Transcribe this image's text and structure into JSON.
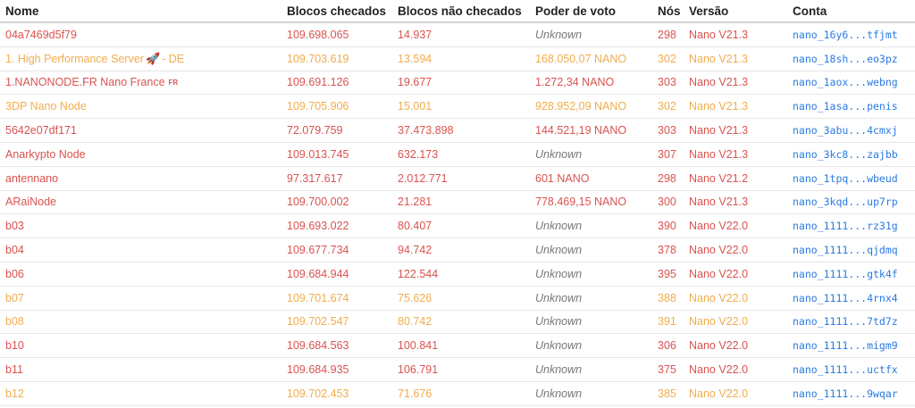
{
  "columns": {
    "name": "Nome",
    "checked": "Blocos checados",
    "unchecked": "Blocos não checados",
    "power": "Poder de voto",
    "peers": "Nós",
    "version": "Versão",
    "account": "Conta"
  },
  "colors": {
    "red": "#d9534f",
    "orange": "#f0ad4e",
    "link": "#2a7ae2",
    "unknown": "#777777"
  },
  "rows": [
    {
      "name": "04a7469d5f79",
      "flag": "",
      "rocket": "",
      "suffix": "",
      "checked": "109.698.065",
      "unchecked": "14.937",
      "power": "Unknown",
      "peers": "298",
      "version": "Nano V21.3",
      "account": "nano_16y6...tfjmt",
      "status": "red"
    },
    {
      "name": "1. High Performance Server",
      "flag": "",
      "rocket": "🚀",
      "suffix": "- DE",
      "checked": "109.703.619",
      "unchecked": "13.594",
      "power": "168.050,07 NANO",
      "peers": "302",
      "version": "Nano V21.3",
      "account": "nano_18sh...eo3pz",
      "status": "orange"
    },
    {
      "name": "1.NANONODE.FR Nano France",
      "flag": "FR",
      "rocket": "",
      "suffix": "",
      "checked": "109.691.126",
      "unchecked": "19.677",
      "power": "1.272,34 NANO",
      "peers": "303",
      "version": "Nano V21.3",
      "account": "nano_1aox...webng",
      "status": "red"
    },
    {
      "name": "3DP Nano Node",
      "flag": "",
      "rocket": "",
      "suffix": "",
      "checked": "109.705.906",
      "unchecked": "15.001",
      "power": "928.952,09 NANO",
      "peers": "302",
      "version": "Nano V21.3",
      "account": "nano_1asa...penis",
      "status": "orange"
    },
    {
      "name": "5642e07df171",
      "flag": "",
      "rocket": "",
      "suffix": "",
      "checked": "72.079.759",
      "unchecked": "37.473.898",
      "power": "144.521,19 NANO",
      "peers": "303",
      "version": "Nano V21.3",
      "account": "nano_3abu...4cmxj",
      "status": "red"
    },
    {
      "name": "Anarkypto Node",
      "flag": "",
      "rocket": "",
      "suffix": "",
      "checked": "109.013.745",
      "unchecked": "632.173",
      "power": "Unknown",
      "peers": "307",
      "version": "Nano V21.3",
      "account": "nano_3kc8...zajbb",
      "status": "red"
    },
    {
      "name": "antennano",
      "flag": "",
      "rocket": "",
      "suffix": "",
      "checked": "97.317.617",
      "unchecked": "2.012.771",
      "power": "601 NANO",
      "peers": "298",
      "version": "Nano V21.2",
      "account": "nano_1tpq...wbeud",
      "status": "red"
    },
    {
      "name": "ARaiNode",
      "flag": "",
      "rocket": "",
      "suffix": "",
      "checked": "109.700.002",
      "unchecked": "21.281",
      "power": "778.469,15 NANO",
      "peers": "300",
      "version": "Nano V21.3",
      "account": "nano_3kqd...up7rp",
      "status": "red"
    },
    {
      "name": "b03",
      "flag": "",
      "rocket": "",
      "suffix": "",
      "checked": "109.693.022",
      "unchecked": "80.407",
      "power": "Unknown",
      "peers": "390",
      "version": "Nano V22.0",
      "account": "nano_1111...rz31g",
      "status": "red"
    },
    {
      "name": "b04",
      "flag": "",
      "rocket": "",
      "suffix": "",
      "checked": "109.677.734",
      "unchecked": "94.742",
      "power": "Unknown",
      "peers": "378",
      "version": "Nano V22.0",
      "account": "nano_1111...qjdmq",
      "status": "red"
    },
    {
      "name": "b06",
      "flag": "",
      "rocket": "",
      "suffix": "",
      "checked": "109.684.944",
      "unchecked": "122.544",
      "power": "Unknown",
      "peers": "395",
      "version": "Nano V22.0",
      "account": "nano_1111...gtk4f",
      "status": "red"
    },
    {
      "name": "b07",
      "flag": "",
      "rocket": "",
      "suffix": "",
      "checked": "109.701.674",
      "unchecked": "75.626",
      "power": "Unknown",
      "peers": "388",
      "version": "Nano V22.0",
      "account": "nano_1111...4rnx4",
      "status": "orange"
    },
    {
      "name": "b08",
      "flag": "",
      "rocket": "",
      "suffix": "",
      "checked": "109.702.547",
      "unchecked": "80.742",
      "power": "Unknown",
      "peers": "391",
      "version": "Nano V22.0",
      "account": "nano_1111...7td7z",
      "status": "orange"
    },
    {
      "name": "b10",
      "flag": "",
      "rocket": "",
      "suffix": "",
      "checked": "109.684.563",
      "unchecked": "100.841",
      "power": "Unknown",
      "peers": "306",
      "version": "Nano V22.0",
      "account": "nano_1111...migm9",
      "status": "red"
    },
    {
      "name": "b11",
      "flag": "",
      "rocket": "",
      "suffix": "",
      "checked": "109.684.935",
      "unchecked": "106.791",
      "power": "Unknown",
      "peers": "375",
      "version": "Nano V22.0",
      "account": "nano_1111...uctfx",
      "status": "red"
    },
    {
      "name": "b12",
      "flag": "",
      "rocket": "",
      "suffix": "",
      "checked": "109.702.453",
      "unchecked": "71.676",
      "power": "Unknown",
      "peers": "385",
      "version": "Nano V22.0",
      "account": "nano_1111...9wqar",
      "status": "orange"
    }
  ]
}
